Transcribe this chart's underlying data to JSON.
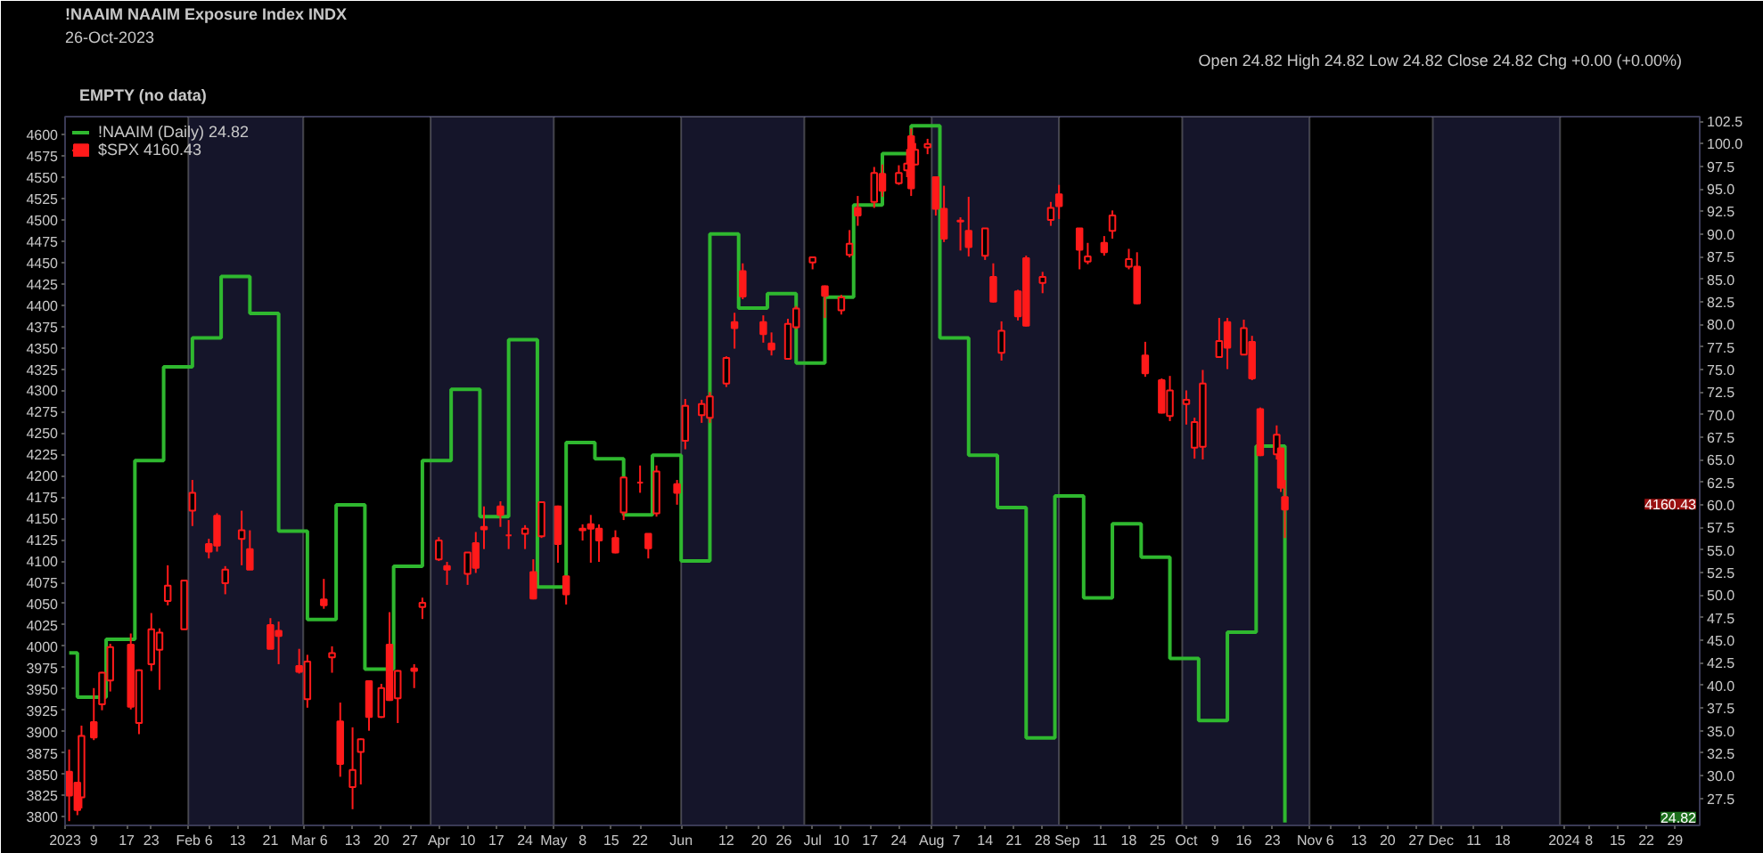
{
  "chart_data": {
    "type": "candlestick",
    "title": "!NAAIM NAAIM Exposure Index  INDX",
    "subtitle": "26-Oct-2023",
    "annotations": [
      "EMPTY (no data)",
      "Open 24.82  High 24.82  Low 24.82  Close 24.82  Chg +0.00 (+0.00%)",
      "4160.43",
      "24.82"
    ],
    "legend": "top left",
    "xlim": [
      "2023-01-02",
      "2024-02-04"
    ],
    "xticks": [
      {
        "value": "2023-01-02",
        "label": "2023"
      },
      {
        "value": "2023-01-09",
        "label": "9"
      },
      {
        "value": "2023-01-17",
        "label": "17"
      },
      {
        "value": "2023-01-23",
        "label": "23"
      },
      {
        "value": "2023-02-01",
        "label": "Feb"
      },
      {
        "value": "2023-02-06",
        "label": "6"
      },
      {
        "value": "2023-02-13",
        "label": "13"
      },
      {
        "value": "2023-02-21",
        "label": "21"
      },
      {
        "value": "2023-03-01",
        "label": "Mar"
      },
      {
        "value": "2023-03-06",
        "label": "6"
      },
      {
        "value": "2023-03-13",
        "label": "13"
      },
      {
        "value": "2023-03-20",
        "label": "20"
      },
      {
        "value": "2023-03-27",
        "label": "27"
      },
      {
        "value": "2023-04-03",
        "label": "Apr"
      },
      {
        "value": "2023-04-10",
        "label": "10"
      },
      {
        "value": "2023-04-17",
        "label": "17"
      },
      {
        "value": "2023-04-24",
        "label": "24"
      },
      {
        "value": "2023-05-01",
        "label": "May"
      },
      {
        "value": "2023-05-08",
        "label": "8"
      },
      {
        "value": "2023-05-15",
        "label": "15"
      },
      {
        "value": "2023-05-22",
        "label": "22"
      },
      {
        "value": "2023-06-01",
        "label": "Jun"
      },
      {
        "value": "2023-06-12",
        "label": "12"
      },
      {
        "value": "2023-06-20",
        "label": "20"
      },
      {
        "value": "2023-06-26",
        "label": "26"
      },
      {
        "value": "2023-07-03",
        "label": "Jul"
      },
      {
        "value": "2023-07-10",
        "label": "10"
      },
      {
        "value": "2023-07-17",
        "label": "17"
      },
      {
        "value": "2023-07-24",
        "label": "24"
      },
      {
        "value": "2023-08-01",
        "label": "Aug"
      },
      {
        "value": "2023-08-07",
        "label": "7"
      },
      {
        "value": "2023-08-14",
        "label": "14"
      },
      {
        "value": "2023-08-21",
        "label": "21"
      },
      {
        "value": "2023-08-28",
        "label": "28"
      },
      {
        "value": "2023-09-03",
        "label": "Sep"
      },
      {
        "value": "2023-09-11",
        "label": "11"
      },
      {
        "value": "2023-09-18",
        "label": "18"
      },
      {
        "value": "2023-09-25",
        "label": "25"
      },
      {
        "value": "2023-10-02",
        "label": "Oct"
      },
      {
        "value": "2023-10-09",
        "label": "9"
      },
      {
        "value": "2023-10-16",
        "label": "16"
      },
      {
        "value": "2023-10-23",
        "label": "23"
      },
      {
        "value": "2023-11-01",
        "label": "Nov"
      },
      {
        "value": "2023-11-06",
        "label": "6"
      },
      {
        "value": "2023-11-13",
        "label": "13"
      },
      {
        "value": "2023-11-20",
        "label": "20"
      },
      {
        "value": "2023-11-27",
        "label": "27"
      },
      {
        "value": "2023-12-03",
        "label": "Dec"
      },
      {
        "value": "2023-12-11",
        "label": "11"
      },
      {
        "value": "2023-12-18",
        "label": "18"
      },
      {
        "value": "2024-01-02",
        "label": "2024"
      },
      {
        "value": "2024-01-08",
        "label": "8"
      },
      {
        "value": "2024-01-15",
        "label": "15"
      },
      {
        "value": "2024-01-22",
        "label": "22"
      },
      {
        "value": "2024-01-29",
        "label": "29"
      }
    ],
    "ylim": [
      3790,
      4621
    ],
    "yticks": [
      3800,
      3825,
      3850,
      3875,
      3900,
      3925,
      3950,
      3975,
      4000,
      4025,
      4050,
      4075,
      4100,
      4125,
      4150,
      4175,
      4200,
      4225,
      4250,
      4275,
      4300,
      4325,
      4350,
      4375,
      4400,
      4425,
      4450,
      4475,
      4500,
      4525,
      4550,
      4575,
      4600
    ],
    "y2lim": [
      24.5,
      103
    ],
    "y2ticks": [
      27.5,
      {
        "value": 30,
        "label": "30.0"
      },
      32.5,
      {
        "value": 35,
        "label": "35.0"
      },
      37.5,
      {
        "value": 40,
        "label": "40.0"
      },
      42.5,
      {
        "value": 45,
        "label": "45.0"
      },
      47.5,
      {
        "value": 50,
        "label": "50.0"
      },
      52.5,
      {
        "value": 55,
        "label": "55.0"
      },
      57.5,
      {
        "value": 60,
        "label": "60.0"
      },
      62.5,
      {
        "value": 65,
        "label": "65.0"
      },
      67.5,
      {
        "value": 70,
        "label": "70.0"
      },
      72.5,
      {
        "value": 75,
        "label": "75.0"
      },
      77.5,
      {
        "value": 80,
        "label": "80.0"
      },
      82.5,
      {
        "value": 85,
        "label": "85.0"
      },
      87.5,
      {
        "value": 90,
        "label": "90.0"
      },
      92.5,
      {
        "value": 95,
        "label": "95.0"
      },
      97.5,
      {
        "value": 100,
        "label": "100.0"
      },
      102.5
    ],
    "bands": [
      {
        "axis": "x",
        "from": "2023-02-01",
        "to": "2023-03-01",
        "color": "#15152a"
      },
      {
        "axis": "x",
        "from": "2023-04-01",
        "to": "2023-05-01",
        "color": "#15152a"
      },
      {
        "axis": "x",
        "from": "2023-06-01",
        "to": "2023-07-01",
        "color": "#15152a"
      },
      {
        "axis": "x",
        "from": "2023-08-01",
        "to": "2023-09-01",
        "color": "#15152a"
      },
      {
        "axis": "x",
        "from": "2023-10-01",
        "to": "2023-11-01",
        "color": "#15152a"
      },
      {
        "axis": "x",
        "from": "2023-12-01",
        "to": "2024-01-01",
        "color": "#15152a"
      }
    ],
    "series": [
      {
        "name": "!NAAIM (Daily) 24.82",
        "type": "step",
        "axis": "y2",
        "color": "#2fb82f",
        "x": [
          "2023-01-03",
          "2023-01-05",
          "2023-01-12",
          "2023-01-19",
          "2023-01-26",
          "2023-02-02",
          "2023-02-09",
          "2023-02-16",
          "2023-02-23",
          "2023-03-02",
          "2023-03-09",
          "2023-03-16",
          "2023-03-23",
          "2023-03-30",
          "2023-04-06",
          "2023-04-13",
          "2023-04-20",
          "2023-04-27",
          "2023-05-04",
          "2023-05-11",
          "2023-05-18",
          "2023-05-25",
          "2023-06-01",
          "2023-06-08",
          "2023-06-15",
          "2023-06-22",
          "2023-06-29",
          "2023-07-06",
          "2023-07-13",
          "2023-07-20",
          "2023-07-27",
          "2023-08-03",
          "2023-08-10",
          "2023-08-17",
          "2023-08-24",
          "2023-08-31",
          "2023-09-07",
          "2023-09-14",
          "2023-09-21",
          "2023-09-28",
          "2023-10-05",
          "2023-10-12",
          "2023-10-19",
          "2023-10-26"
        ],
        "values": [
          43.6,
          38.7,
          45.1,
          64.9,
          75.3,
          78.5,
          85.3,
          81.2,
          57.1,
          47.3,
          60.0,
          41.8,
          53.2,
          64.9,
          72.8,
          58.7,
          78.3,
          50.9,
          66.9,
          65.1,
          58.9,
          65.5,
          53.8,
          90.0,
          81.8,
          83.4,
          75.7,
          83.0,
          93.2,
          98.9,
          102.0,
          78.5,
          65.5,
          59.7,
          34.2,
          61.0,
          49.7,
          57.9,
          54.2,
          43.0,
          36.1,
          45.9,
          66.5,
          24.82
        ]
      },
      {
        "name": "$SPX 4160.43",
        "color": "#ff1a1a",
        "x": [
          "2023-01-03",
          "2023-01-05",
          "2023-01-06",
          "2023-01-09",
          "2023-01-11",
          "2023-01-13",
          "2023-01-18",
          "2023-01-20",
          "2023-01-23",
          "2023-01-25",
          "2023-01-27",
          "2023-01-31",
          "2023-02-02",
          "2023-02-06",
          "2023-02-08",
          "2023-02-10",
          "2023-02-14",
          "2023-02-16",
          "2023-02-21",
          "2023-02-23",
          "2023-02-28",
          "2023-03-02",
          "2023-03-06",
          "2023-03-08",
          "2023-03-10",
          "2023-03-13",
          "2023-03-15",
          "2023-03-17",
          "2023-03-20",
          "2023-03-22",
          "2023-03-24",
          "2023-03-28",
          "2023-03-30",
          "2023-04-03",
          "2023-04-05",
          "2023-04-10",
          "2023-04-12",
          "2023-04-14",
          "2023-04-18",
          "2023-04-20",
          "2023-04-24",
          "2023-04-26",
          "2023-04-28",
          "2023-05-02",
          "2023-05-04",
          "2023-05-08",
          "2023-05-10",
          "2023-05-12",
          "2023-05-16",
          "2023-05-18",
          "2023-05-22",
          "2023-05-24",
          "2023-05-26",
          "2023-05-31",
          "2023-06-02",
          "2023-06-06",
          "2023-06-08",
          "2023-06-12",
          "2023-06-14",
          "2023-06-16",
          "2023-06-21",
          "2023-06-23",
          "2023-06-27",
          "2023-06-29",
          "2023-07-03",
          "2023-07-06",
          "2023-07-10",
          "2023-07-12",
          "2023-07-14",
          "2023-07-18",
          "2023-07-20",
          "2023-07-24",
          "2023-07-26",
          "2023-07-27",
          "2023-07-28",
          "2023-07-31",
          "2023-08-02",
          "2023-08-04",
          "2023-08-08",
          "2023-08-10",
          "2023-08-14",
          "2023-08-16",
          "2023-08-18",
          "2023-08-22",
          "2023-08-24",
          "2023-08-28",
          "2023-08-30",
          "2023-09-01",
          "2023-09-06",
          "2023-09-08",
          "2023-09-12",
          "2023-09-14",
          "2023-09-18",
          "2023-09-20",
          "2023-09-22",
          "2023-09-26",
          "2023-09-28",
          "2023-10-02",
          "2023-10-04",
          "2023-10-06",
          "2023-10-10",
          "2023-10-12",
          "2023-10-16",
          "2023-10-18",
          "2023-10-20",
          "2023-10-24",
          "2023-10-25",
          "2023-10-26"
        ],
        "ohlc": [
          [
            3853,
            3879,
            3795,
            3825
          ],
          [
            3840,
            3840,
            3802,
            3808
          ],
          [
            3823,
            3907,
            3810,
            3895
          ],
          [
            3911,
            3951,
            3890,
            3893
          ],
          [
            3932,
            3970,
            3925,
            3969
          ],
          [
            3960,
            4003,
            3947,
            3999
          ],
          [
            4002,
            4015,
            3926,
            3929
          ],
          [
            3910,
            3973,
            3897,
            3972
          ],
          [
            3979,
            4039,
            3971,
            4020
          ],
          [
            3996,
            4021,
            3949,
            4016
          ],
          [
            4053,
            4095,
            4048,
            4071
          ],
          [
            4020,
            4077,
            4020,
            4077
          ],
          [
            4159,
            4195,
            4141,
            4180
          ],
          [
            4120,
            4126,
            4103,
            4111
          ],
          [
            4153,
            4156,
            4111,
            4118
          ],
          [
            4074,
            4094,
            4061,
            4090
          ],
          [
            4126,
            4159,
            4095,
            4136
          ],
          [
            4114,
            4136,
            4090,
            4090
          ],
          [
            4025,
            4033,
            3997,
            3997
          ],
          [
            4018,
            4029,
            3979,
            4012
          ],
          [
            3977,
            3997,
            3968,
            3970
          ],
          [
            3938,
            3990,
            3928,
            3982
          ],
          [
            4055,
            4079,
            4044,
            4048
          ],
          [
            3987,
            4000,
            3969,
            3992
          ],
          [
            3912,
            3934,
            3847,
            3862
          ],
          [
            3835,
            3905,
            3809,
            3855
          ],
          [
            3876,
            3892,
            3838,
            3891
          ],
          [
            3959,
            3959,
            3901,
            3917
          ],
          [
            3917,
            3956,
            3916,
            3951
          ],
          [
            4002,
            4040,
            3936,
            3937
          ],
          [
            3939,
            3972,
            3910,
            3971
          ],
          [
            3974,
            3979,
            3951,
            3971
          ],
          [
            4046,
            4057,
            4032,
            4051
          ],
          [
            4102,
            4128,
            4100,
            4124
          ],
          [
            4094,
            4099,
            4072,
            4090
          ],
          [
            4085,
            4110,
            4072,
            4110
          ],
          [
            4121,
            4134,
            4086,
            4092
          ],
          [
            4140,
            4164,
            4114,
            4137
          ],
          [
            4164,
            4170,
            4140,
            4154
          ],
          [
            4130,
            4148,
            4114,
            4130
          ],
          [
            4132,
            4142,
            4114,
            4138
          ],
          [
            4087,
            4102,
            4055,
            4056
          ],
          [
            4129,
            4170,
            4127,
            4169
          ],
          [
            4164,
            4165,
            4098,
            4120
          ],
          [
            4082,
            4082,
            4049,
            4061
          ],
          [
            4136,
            4143,
            4124,
            4138
          ],
          [
            4143,
            4154,
            4098,
            4138
          ],
          [
            4138,
            4143,
            4099,
            4124
          ],
          [
            4127,
            4136,
            4109,
            4110
          ],
          [
            4157,
            4199,
            4148,
            4198
          ],
          [
            4192,
            4212,
            4180,
            4192
          ],
          [
            4132,
            4132,
            4103,
            4115
          ],
          [
            4156,
            4212,
            4152,
            4205
          ],
          [
            4190,
            4195,
            4166,
            4180
          ],
          [
            4241,
            4290,
            4231,
            4282
          ],
          [
            4271,
            4289,
            4262,
            4284
          ],
          [
            4268,
            4298,
            4262,
            4293
          ],
          [
            4308,
            4340,
            4304,
            4338
          ],
          [
            4380,
            4391,
            4349,
            4373
          ],
          [
            4440,
            4449,
            4407,
            4410
          ],
          [
            4380,
            4388,
            4356,
            4366
          ],
          [
            4355,
            4368,
            4341,
            4348
          ],
          [
            4337,
            4384,
            4336,
            4378
          ],
          [
            4374,
            4399,
            4372,
            4396
          ],
          [
            4450,
            4456,
            4442,
            4456
          ],
          [
            4422,
            4423,
            4385,
            4411
          ],
          [
            4394,
            4412,
            4389,
            4409
          ],
          [
            4459,
            4488,
            4456,
            4472
          ],
          [
            4514,
            4528,
            4493,
            4505
          ],
          [
            4521,
            4562,
            4514,
            4555
          ],
          [
            4554,
            4565,
            4527,
            4534
          ],
          [
            4543,
            4564,
            4541,
            4555
          ],
          [
            4558,
            4583,
            4550,
            4566
          ],
          [
            4598,
            4607,
            4528,
            4537
          ],
          [
            4565,
            4590,
            4564,
            4582
          ],
          [
            4585,
            4595,
            4577,
            4589
          ],
          [
            4550,
            4550,
            4505,
            4513
          ],
          [
            4513,
            4540,
            4474,
            4478
          ],
          [
            4498,
            4503,
            4464,
            4499
          ],
          [
            4487,
            4527,
            4457,
            4468
          ],
          [
            4458,
            4490,
            4453,
            4490
          ],
          [
            4433,
            4449,
            4403,
            4404
          ],
          [
            4344,
            4381,
            4335,
            4370
          ],
          [
            4416,
            4418,
            4382,
            4387
          ],
          [
            4455,
            4458,
            4375,
            4376
          ],
          [
            4426,
            4439,
            4414,
            4433
          ],
          [
            4500,
            4521,
            4493,
            4514
          ],
          [
            4530,
            4541,
            4501,
            4516
          ],
          [
            4490,
            4490,
            4442,
            4465
          ],
          [
            4451,
            4473,
            4448,
            4457
          ],
          [
            4473,
            4481,
            4458,
            4462
          ],
          [
            4487,
            4511,
            4478,
            4505
          ],
          [
            4445,
            4466,
            4442,
            4454
          ],
          [
            4445,
            4462,
            4401,
            4402
          ],
          [
            4341,
            4357,
            4316,
            4320
          ],
          [
            4312,
            4314,
            4273,
            4274
          ],
          [
            4270,
            4317,
            4264,
            4300
          ],
          [
            4284,
            4300,
            4260,
            4289
          ],
          [
            4233,
            4268,
            4220,
            4263
          ],
          [
            4234,
            4324,
            4219,
            4308
          ],
          [
            4339,
            4385,
            4339,
            4358
          ],
          [
            4380,
            4385,
            4325,
            4350
          ],
          [
            4342,
            4383,
            4342,
            4373
          ],
          [
            4357,
            4364,
            4312,
            4314
          ],
          [
            4278,
            4280,
            4223,
            4224
          ],
          [
            4225,
            4259,
            4219,
            4248
          ],
          [
            4232,
            4232,
            4181,
            4186
          ],
          [
            4175,
            4195,
            4127,
            4160.43
          ]
        ]
      }
    ]
  }
}
